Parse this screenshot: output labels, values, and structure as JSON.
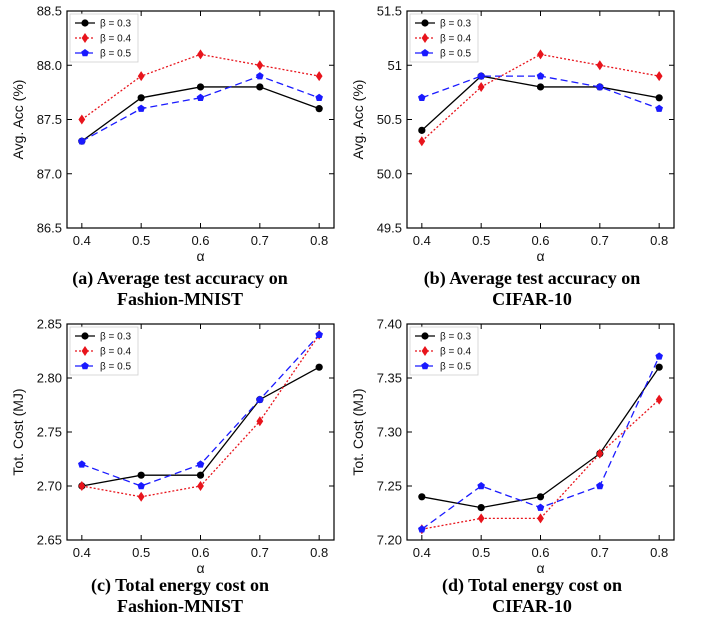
{
  "chart_data": [
    {
      "type": "line",
      "title": "(a) Average test accuracy on Fashion-MNIST",
      "caption_lines": [
        "(a) Average test accuracy on",
        "Fashion-MNIST"
      ],
      "xlabel": "α",
      "ylabel": "Avg. Acc (%)",
      "x": [
        0.4,
        0.5,
        0.6,
        0.7,
        0.8
      ],
      "x_tick_labels": [
        "0.4",
        "0.5",
        "0.6",
        "0.7",
        "0.8"
      ],
      "ylim": [
        86.5,
        88.5
      ],
      "y_ticks": [
        86.5,
        87.0,
        87.5,
        88.0,
        88.5
      ],
      "y_tick_labels": [
        "86.5",
        "87.0",
        "87.5",
        "88.0",
        "88.5"
      ],
      "legend_position": "top-left",
      "series": [
        {
          "name": "β = 0.3",
          "values": [
            87.3,
            87.7,
            87.8,
            87.8,
            87.6
          ]
        },
        {
          "name": "β = 0.4",
          "values": [
            87.5,
            87.9,
            88.1,
            88.0,
            87.9
          ]
        },
        {
          "name": "β = 0.5",
          "values": [
            87.3,
            87.6,
            87.7,
            87.9,
            87.7
          ]
        }
      ]
    },
    {
      "type": "line",
      "title": "(b) Average test accuracy on CIFAR-10",
      "caption_lines": [
        "(b) Average test accuracy on",
        "CIFAR-10"
      ],
      "xlabel": "α",
      "ylabel": "Avg. Acc (%)",
      "x": [
        0.4,
        0.5,
        0.6,
        0.7,
        0.8
      ],
      "x_tick_labels": [
        "0.4",
        "0.5",
        "0.6",
        "0.7",
        "0.8"
      ],
      "ylim": [
        49.5,
        51.5
      ],
      "y_ticks": [
        49.5,
        50.0,
        50.5,
        51.0,
        51.5
      ],
      "y_tick_labels": [
        "49.5",
        "50.0",
        "50.5",
        "51",
        "51.5"
      ],
      "legend_position": "top-left",
      "series": [
        {
          "name": "β = 0.3",
          "values": [
            50.4,
            50.9,
            50.8,
            50.8,
            50.7
          ]
        },
        {
          "name": "β = 0.4",
          "values": [
            50.3,
            50.8,
            51.1,
            51.0,
            50.9
          ]
        },
        {
          "name": "β = 0.5",
          "values": [
            50.7,
            50.9,
            50.9,
            50.8,
            50.6
          ]
        }
      ]
    },
    {
      "type": "line",
      "title": "(c) Total energy cost on Fashion-MNIST",
      "caption_lines": [
        "(c) Total energy cost on",
        "Fashion-MNIST"
      ],
      "xlabel": "α",
      "ylabel": "Tot. Cost (MJ)",
      "x": [
        0.4,
        0.5,
        0.6,
        0.7,
        0.8
      ],
      "x_tick_labels": [
        "0.4",
        "0.5",
        "0.6",
        "0.7",
        "0.8"
      ],
      "ylim": [
        2.65,
        2.85
      ],
      "y_ticks": [
        2.65,
        2.7,
        2.75,
        2.8,
        2.85
      ],
      "y_tick_labels": [
        "2.65",
        "2.70",
        "2.75",
        "2.80",
        "2.85"
      ],
      "legend_position": "top-left",
      "series": [
        {
          "name": "β = 0.3",
          "values": [
            2.7,
            2.71,
            2.71,
            2.78,
            2.81
          ]
        },
        {
          "name": "β = 0.4",
          "values": [
            2.7,
            2.69,
            2.7,
            2.76,
            2.84
          ]
        },
        {
          "name": "β = 0.5",
          "values": [
            2.72,
            2.7,
            2.72,
            2.78,
            2.84
          ]
        }
      ]
    },
    {
      "type": "line",
      "title": "(d) Total energy cost on CIFAR-10",
      "caption_lines": [
        "(d) Total energy cost on",
        "CIFAR-10"
      ],
      "xlabel": "α",
      "ylabel": "Tot. Cost (MJ)",
      "x": [
        0.4,
        0.5,
        0.6,
        0.7,
        0.8
      ],
      "x_tick_labels": [
        "0.4",
        "0.5",
        "0.6",
        "0.7",
        "0.8"
      ],
      "ylim": [
        7.2,
        7.4
      ],
      "y_ticks": [
        7.2,
        7.25,
        7.3,
        7.35,
        7.4
      ],
      "y_tick_labels": [
        "7.20",
        "7.25",
        "7.30",
        "7.35",
        "7.40"
      ],
      "legend_position": "top-left",
      "series": [
        {
          "name": "β = 0.3",
          "values": [
            7.24,
            7.23,
            7.24,
            7.28,
            7.36
          ]
        },
        {
          "name": "β = 0.4",
          "values": [
            7.21,
            7.22,
            7.22,
            7.28,
            7.33
          ]
        },
        {
          "name": "β = 0.5",
          "values": [
            7.21,
            7.25,
            7.23,
            7.25,
            7.37
          ]
        }
      ]
    }
  ],
  "series_styles": [
    {
      "color": "#000000",
      "dash": "",
      "marker": "circle"
    },
    {
      "color": "#e8141c",
      "dash": "2,2",
      "marker": "diamond"
    },
    {
      "color": "#1a1aff",
      "dash": "7,4",
      "marker": "pentagon"
    }
  ]
}
